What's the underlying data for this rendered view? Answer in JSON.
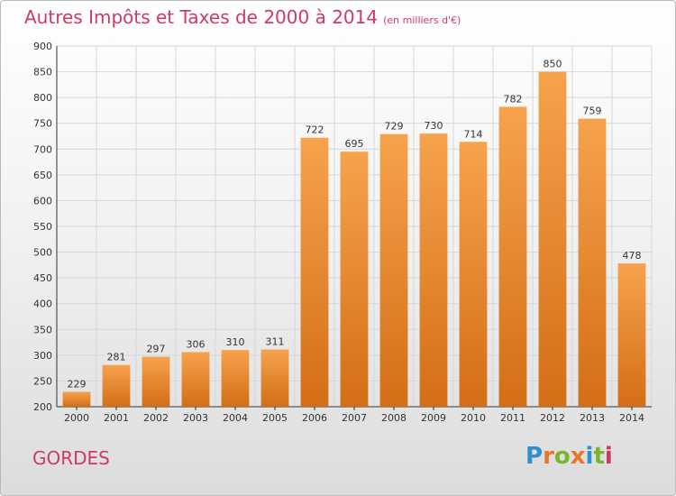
{
  "header": {
    "title": "Autres Impôts et Taxes de 2000 à 2014",
    "unit": "(en milliers d'€)"
  },
  "footer": {
    "place": "GORDES",
    "logo": "Proxiti",
    "logo_colors": [
      "#2f8fd0",
      "#e8762a",
      "#79b62c",
      "#e8762a",
      "#2f8fd0",
      "#79b62c",
      "#cf3a64"
    ]
  },
  "colors": {
    "bar_light": "#f7a24d",
    "bar_dark": "#d36e16",
    "grid": "#d7d7d7",
    "axis": "#333333",
    "title": "#cf3a64"
  },
  "chart_data": {
    "type": "bar",
    "categories": [
      "2000",
      "2001",
      "2002",
      "2003",
      "2004",
      "2005",
      "2006",
      "2007",
      "2008",
      "2009",
      "2010",
      "2011",
      "2012",
      "2013",
      "2014"
    ],
    "values": [
      229,
      281,
      297,
      306,
      310,
      311,
      722,
      695,
      729,
      730,
      714,
      782,
      850,
      759,
      478
    ],
    "title": "Autres Impôts et Taxes de 2000 à 2014",
    "subtitle": "(en milliers d'€)",
    "xlabel": "",
    "ylabel": "",
    "ylim": [
      200,
      900
    ],
    "yticks": [
      200,
      250,
      300,
      350,
      400,
      450,
      500,
      550,
      600,
      650,
      700,
      750,
      800,
      850,
      900
    ],
    "grid": true,
    "legend": "none"
  }
}
